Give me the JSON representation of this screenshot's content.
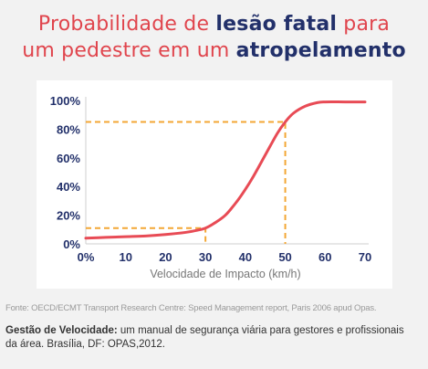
{
  "title": {
    "parts": [
      {
        "text": "Probabilidade de ",
        "style": "red"
      },
      {
        "text": "lesão fatal",
        "style": "blue"
      },
      {
        "text": " para",
        "style": "red"
      },
      {
        "text": "um pedestre em um ",
        "style": "red"
      },
      {
        "text": "atropelamento",
        "style": "blue"
      }
    ]
  },
  "colors": {
    "title_red": "#e0454d",
    "title_blue": "#22306a",
    "curve": "#e84b55",
    "guide": "#f3a735",
    "axis_text": "#22306a",
    "xlabel": "#777777"
  },
  "chart_data": {
    "type": "line",
    "title": "Probabilidade de lesão fatal para um pedestre em um atropelamento",
    "xlabel": "Velocidade de Impacto (km/h)",
    "ylabel": "",
    "xlim": [
      0,
      70
    ],
    "ylim": [
      0,
      100
    ],
    "xticks": [
      "0%",
      "10",
      "20",
      "30",
      "40",
      "50",
      "60",
      "70"
    ],
    "yticks": [
      "0%",
      "20%",
      "40%",
      "60%",
      "80%",
      "100%"
    ],
    "grid": false,
    "series": [
      {
        "x": [
          0,
          5,
          10,
          15,
          20,
          25,
          28,
          30,
          32,
          35,
          38,
          40,
          42,
          45,
          48,
          50,
          52,
          55,
          58,
          60,
          65,
          70
        ],
        "y": [
          4,
          4.5,
          5,
          5.5,
          6.5,
          8,
          9.5,
          11,
          14,
          20,
          30,
          38,
          47,
          62,
          77,
          85,
          91,
          96,
          98.5,
          99,
          99,
          99
        ]
      }
    ],
    "guides": [
      {
        "x": 30,
        "y": 11
      },
      {
        "x": 50,
        "y": 85
      }
    ]
  },
  "source": "Fonte: OECD/ECMT Transport Research Centre: Speed Management report, Paris 2006 apud Opas.",
  "citation": {
    "bold": "Gestão de Velocidade:",
    "rest": " um manual de segurança viária para gestores e profissionais da área. Brasília, DF: OPAS,2012."
  }
}
